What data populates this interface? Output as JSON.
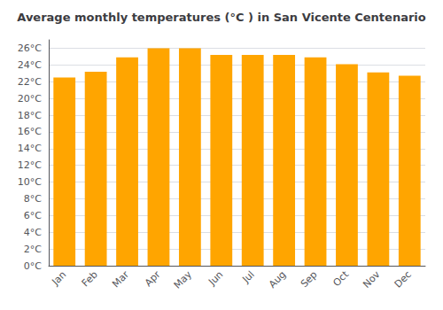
{
  "chart_data": {
    "type": "bar",
    "title": "Average monthly temperatures (°C ) in San Vicente Centenario",
    "categories": [
      "Jan",
      "Feb",
      "Mar",
      "Apr",
      "May",
      "Jun",
      "Jul",
      "Aug",
      "Sep",
      "Oct",
      "Nov",
      "Dec"
    ],
    "values": [
      22.5,
      23.2,
      24.9,
      26.0,
      26.0,
      25.2,
      25.2,
      25.2,
      24.9,
      24.1,
      23.1,
      22.7
    ],
    "color": "#FFA500",
    "ylim": [
      0,
      27
    ],
    "yticks": [
      {
        "value": 0,
        "label": "0°C"
      },
      {
        "value": 2,
        "label": "2°C"
      },
      {
        "value": 4,
        "label": "4°C"
      },
      {
        "value": 6,
        "label": "6°C"
      },
      {
        "value": 8,
        "label": "8°C"
      },
      {
        "value": 10,
        "label": "10°C"
      },
      {
        "value": 12,
        "label": "12°C"
      },
      {
        "value": 14,
        "label": "14°C"
      },
      {
        "value": 16,
        "label": "16°C"
      },
      {
        "value": 18,
        "label": "18°C"
      },
      {
        "value": 20,
        "label": "20°C"
      },
      {
        "value": 22,
        "label": "22°C"
      },
      {
        "value": 24,
        "label": "24°C"
      },
      {
        "value": 26,
        "label": "26°C"
      }
    ],
    "grid": true
  }
}
